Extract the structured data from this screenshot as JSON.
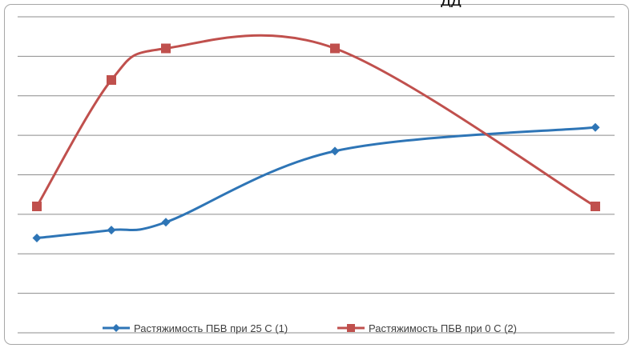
{
  "chart_data": {
    "type": "line",
    "title": "",
    "xlabel": "",
    "ylabel": "",
    "x": [
      1,
      2,
      3,
      4,
      5
    ],
    "categories": [
      "",
      "",
      "",
      "",
      ""
    ],
    "ylim": [
      0,
      8
    ],
    "grid": true,
    "legend_position": "bottom",
    "series": [
      {
        "name": "Растяжимость ПБВ при 25 С (1)",
        "color": "#2e75b6",
        "marker": "diamond",
        "smooth": true,
        "x": [
          1,
          2,
          3,
          4,
          5
        ],
        "values": [
          2.4,
          2.6,
          2.8,
          4.6,
          5.2
        ]
      },
      {
        "name": "Растяжимость ПБВ при 0 С (2)",
        "color": "#c0504d",
        "marker": "square",
        "smooth": true,
        "x": [
          1,
          2,
          3,
          4,
          5
        ],
        "values": [
          3.2,
          6.4,
          7.2,
          7.2,
          3.2
        ]
      }
    ]
  },
  "fragment_text": "дд"
}
